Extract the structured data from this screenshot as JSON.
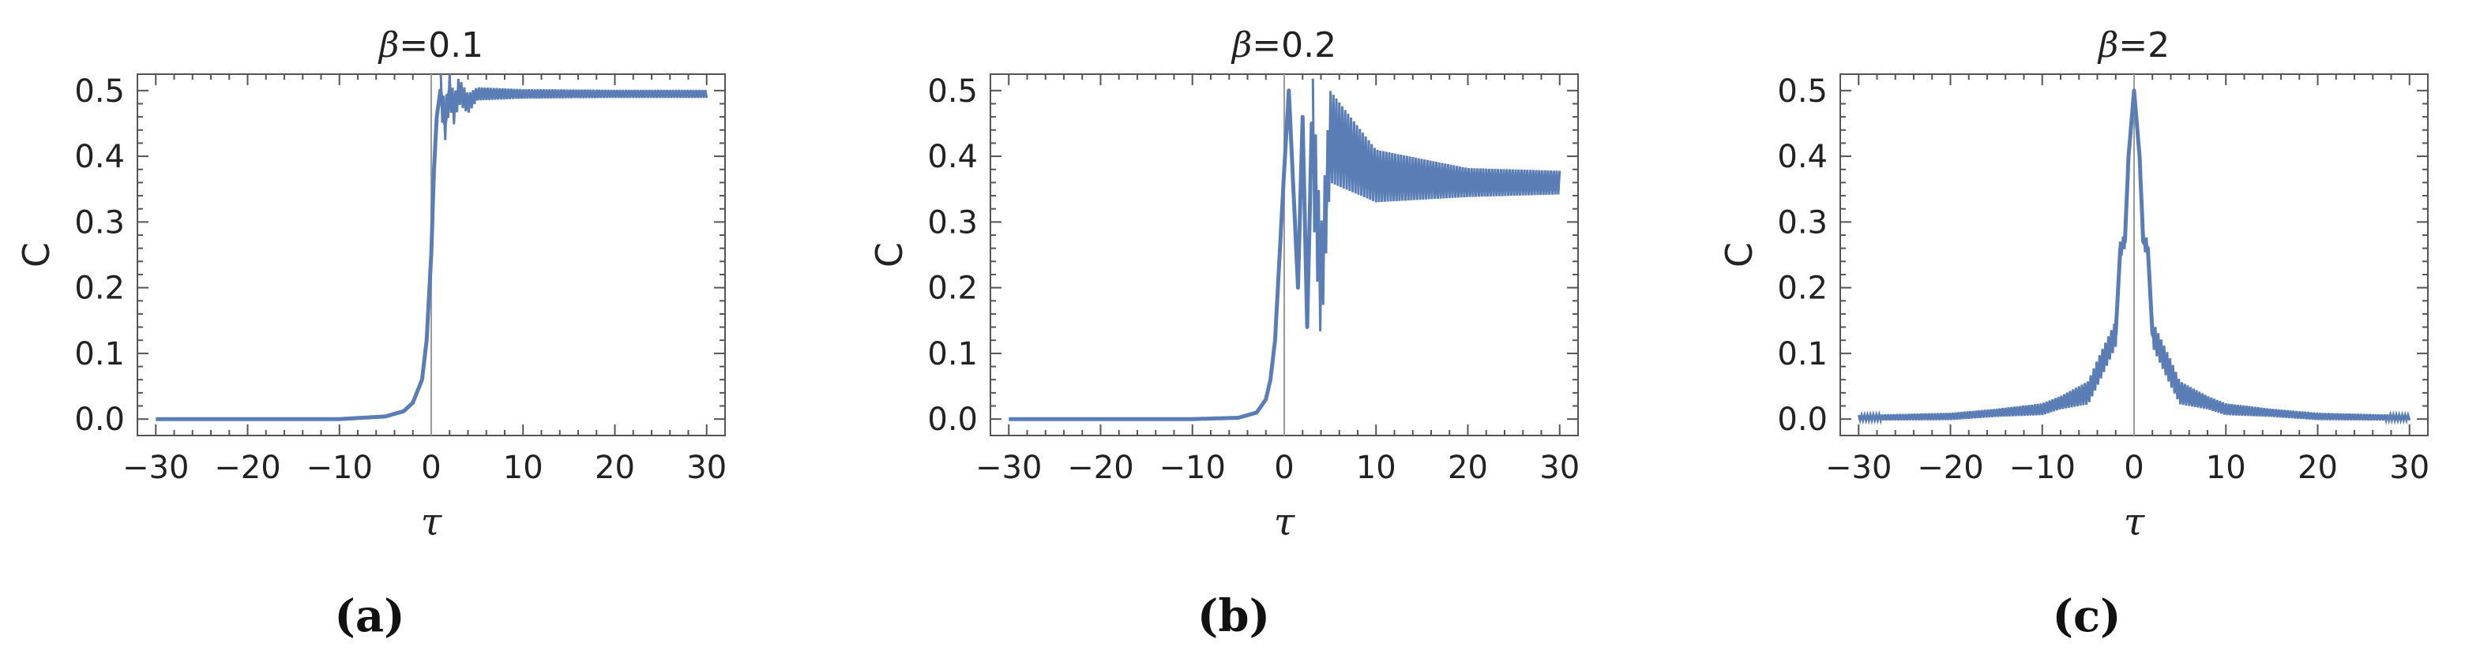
{
  "chart_data": [
    {
      "type": "line",
      "panel_label": "(a)",
      "title_symbol": "β",
      "title_value": "=0.1",
      "xlabel": "τ",
      "ylabel": "C",
      "xlim": [
        -32,
        32
      ],
      "ylim": [
        -0.025,
        0.525
      ],
      "xticks": [
        -30,
        -20,
        -10,
        0,
        10,
        20,
        30
      ],
      "yticks": [
        "0.0",
        "0.1",
        "0.2",
        "0.3",
        "0.4",
        "0.5"
      ],
      "color": "#5b7db5",
      "series": [
        {
          "x": [
            -30,
            -20,
            -10,
            -5,
            -3,
            -2,
            -1,
            -0.5,
            0,
            0.3,
            0.6,
            1,
            1.5,
            2,
            2.5,
            3,
            4,
            5,
            10,
            20,
            30
          ],
          "y": [
            0.0,
            0.0,
            0.0,
            0.004,
            0.012,
            0.025,
            0.06,
            0.12,
            0.25,
            0.38,
            0.46,
            0.5,
            0.45,
            0.5,
            0.47,
            0.5,
            0.48,
            0.495,
            0.495,
            0.495,
            0.495
          ],
          "envelope": {
            "x": [
              1,
              5,
              10,
              20,
              30
            ],
            "half_width": [
              0.03,
              0.01,
              0.007,
              0.006,
              0.006
            ]
          }
        }
      ]
    },
    {
      "type": "line",
      "panel_label": "(b)",
      "title_symbol": "β",
      "title_value": "=0.2",
      "xlabel": "τ",
      "ylabel": "C",
      "xlim": [
        -32,
        32
      ],
      "ylim": [
        -0.025,
        0.525
      ],
      "xticks": [
        -30,
        -20,
        -10,
        0,
        10,
        20,
        30
      ],
      "yticks": [
        "0.0",
        "0.1",
        "0.2",
        "0.3",
        "0.4",
        "0.5"
      ],
      "color": "#5b7db5",
      "series": [
        {
          "x": [
            -30,
            -20,
            -10,
            -5,
            -3,
            -2,
            -1.5,
            -1,
            -0.5,
            0,
            0.5,
            1,
            1.5,
            2,
            2.5,
            3,
            4,
            5,
            10,
            20,
            30
          ],
          "y": [
            0.0,
            0.0,
            0.0,
            0.002,
            0.01,
            0.03,
            0.06,
            0.12,
            0.25,
            0.38,
            0.5,
            0.35,
            0.2,
            0.46,
            0.14,
            0.45,
            0.2,
            0.43,
            0.37,
            0.36,
            0.36
          ],
          "envelope": {
            "x": [
              3,
              5,
              10,
              20,
              30
            ],
            "half_width": [
              0.1,
              0.07,
              0.04,
              0.022,
              0.018
            ]
          }
        }
      ]
    },
    {
      "type": "line",
      "panel_label": "(c)",
      "title_symbol": "β",
      "title_value": "=2",
      "xlabel": "τ",
      "ylabel": "C",
      "xlim": [
        -32,
        32
      ],
      "ylim": [
        -0.025,
        0.525
      ],
      "xticks": [
        -30,
        -20,
        -10,
        0,
        10,
        20,
        30
      ],
      "yticks": [
        "0.0",
        "0.1",
        "0.2",
        "0.3",
        "0.4",
        "0.5"
      ],
      "color": "#5b7db5",
      "series": [
        {
          "x": [
            -30,
            -20,
            -10,
            -5,
            -3,
            -2,
            -1.5,
            -1,
            -0.6,
            0,
            0.6,
            1,
            1.5,
            2,
            3,
            5,
            10,
            20,
            30
          ],
          "y": [
            0.002,
            0.004,
            0.015,
            0.04,
            0.1,
            0.13,
            0.26,
            0.27,
            0.4,
            0.5,
            0.4,
            0.27,
            0.26,
            0.13,
            0.1,
            0.04,
            0.015,
            0.004,
            0.002
          ],
          "symmetric_envelope": {
            "x": [
              0,
              1,
              2,
              4,
              8,
              15,
              30
            ],
            "half_width": [
              0.0,
              0.01,
              0.02,
              0.02,
              0.01,
              0.006,
              0.004
            ]
          }
        }
      ]
    }
  ]
}
